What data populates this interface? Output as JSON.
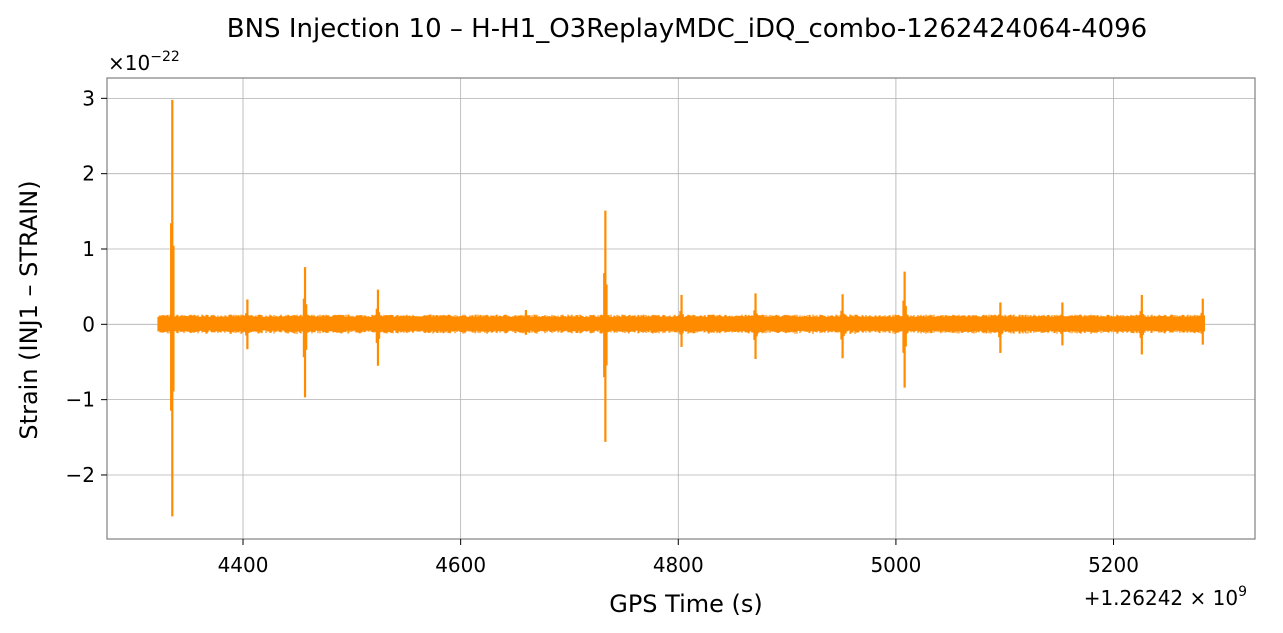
{
  "chart_data": {
    "type": "line",
    "title": "BNS Injection 10 – H-H1_O3ReplayMDC_iDQ_combo-1262424064-4096",
    "xlabel": "GPS Time (s)",
    "ylabel": "Strain (INJ1 – STRAIN)",
    "y_scale_label": {
      "base": "×10",
      "exp": "−22"
    },
    "x_offset_label": {
      "base": "+1.26242 × 10",
      "exp": "9"
    },
    "xlim": [
      4275,
      5330
    ],
    "ylim": [
      -2.85,
      3.27
    ],
    "x_ticks": [
      4400,
      4600,
      4800,
      5000,
      5200
    ],
    "x_tick_labels": [
      "4400",
      "4600",
      "4800",
      "5000",
      "5200"
    ],
    "y_ticks": [
      -2,
      -1,
      0,
      1,
      2,
      3
    ],
    "y_tick_labels": [
      "−2",
      "−1",
      "0",
      "1",
      "2",
      "3"
    ],
    "grid": true,
    "series_color": "#ff8c00",
    "baseline": {
      "x_start": 4322,
      "x_end": 5283,
      "noise_amplitude": 0.13
    },
    "spikes": [
      {
        "x": 4335,
        "max": 2.98,
        "min": -2.55
      },
      {
        "x": 4404,
        "max": 0.33,
        "min": -0.33
      },
      {
        "x": 4457,
        "max": 0.76,
        "min": -0.97
      },
      {
        "x": 4524,
        "max": 0.46,
        "min": -0.55
      },
      {
        "x": 4660,
        "max": 0.19,
        "min": -0.14
      },
      {
        "x": 4733,
        "max": 1.51,
        "min": -1.56
      },
      {
        "x": 4803,
        "max": 0.39,
        "min": -0.3
      },
      {
        "x": 4871,
        "max": 0.41,
        "min": -0.46
      },
      {
        "x": 4951,
        "max": 0.4,
        "min": -0.45
      },
      {
        "x": 5008,
        "max": 0.7,
        "min": -0.84
      },
      {
        "x": 5096,
        "max": 0.29,
        "min": -0.38
      },
      {
        "x": 5153,
        "max": 0.29,
        "min": -0.28
      },
      {
        "x": 5226,
        "max": 0.39,
        "min": -0.4
      },
      {
        "x": 5282,
        "max": 0.34,
        "min": -0.27
      }
    ]
  }
}
